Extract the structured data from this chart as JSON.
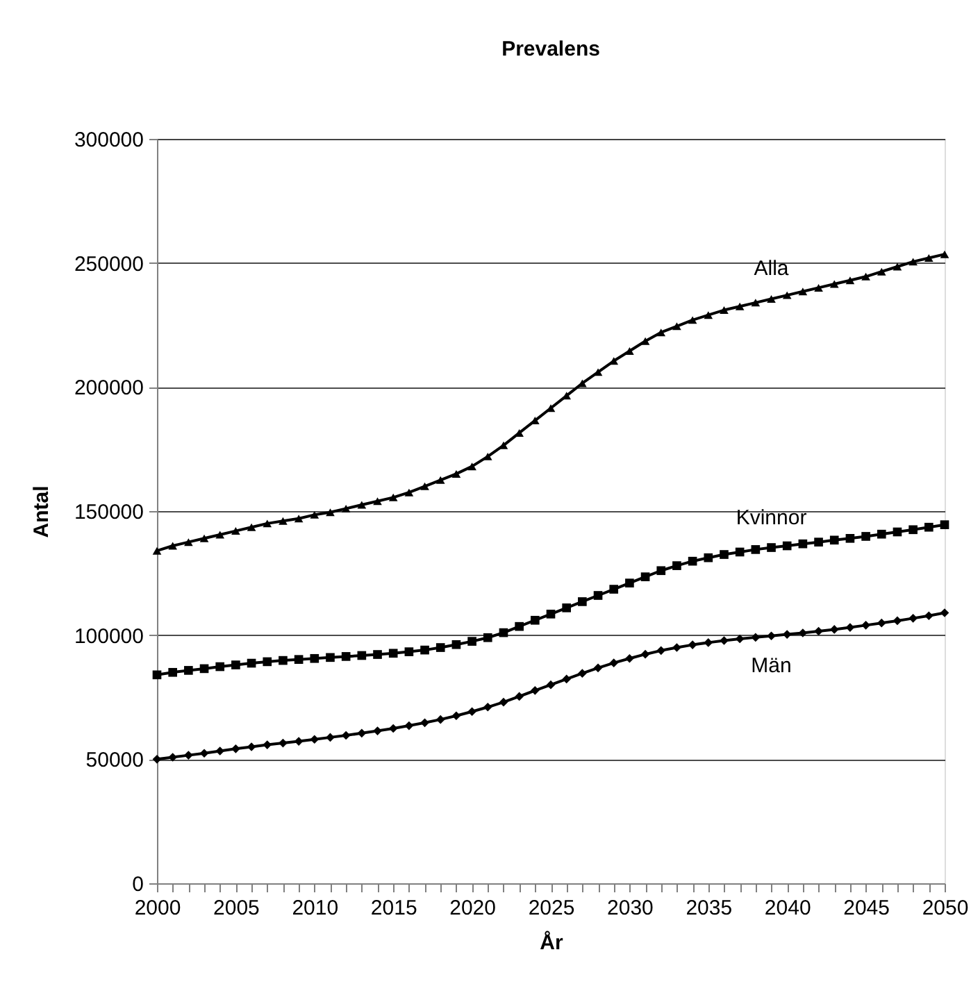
{
  "chart_data": {
    "type": "line",
    "title": "Prevalens",
    "xlabel": "År",
    "ylabel": "Antal",
    "x": [
      2000,
      2001,
      2002,
      2003,
      2004,
      2005,
      2006,
      2007,
      2008,
      2009,
      2010,
      2011,
      2012,
      2013,
      2014,
      2015,
      2016,
      2017,
      2018,
      2019,
      2020,
      2021,
      2022,
      2023,
      2024,
      2025,
      2026,
      2027,
      2028,
      2029,
      2030,
      2031,
      2032,
      2033,
      2034,
      2035,
      2036,
      2037,
      2038,
      2039,
      2040,
      2041,
      2042,
      2043,
      2044,
      2045,
      2046,
      2047,
      2048,
      2049,
      2050
    ],
    "series": [
      {
        "name": "Alla",
        "color": "#000000",
        "marker": "triangle",
        "values": [
          134000,
          136000,
          137500,
          139000,
          140500,
          142000,
          143500,
          145000,
          146000,
          147000,
          148500,
          149500,
          151000,
          152500,
          154000,
          155500,
          157500,
          160000,
          162500,
          165000,
          168000,
          172000,
          176500,
          181500,
          186500,
          191500,
          196500,
          201500,
          206000,
          210500,
          214500,
          218500,
          222000,
          224500,
          227000,
          229000,
          231000,
          232500,
          234000,
          235500,
          237000,
          238500,
          240000,
          241500,
          243000,
          244500,
          246500,
          248500,
          250500,
          252000,
          253500
        ]
      },
      {
        "name": "Kvinnor",
        "color": "#000000",
        "marker": "square",
        "values": [
          84000,
          85000,
          85800,
          86500,
          87300,
          88000,
          88700,
          89300,
          89800,
          90200,
          90600,
          91000,
          91400,
          91800,
          92200,
          92700,
          93300,
          94000,
          95000,
          96200,
          97500,
          99000,
          101000,
          103500,
          106000,
          108500,
          111000,
          113500,
          116000,
          118500,
          121000,
          123500,
          126000,
          128000,
          129800,
          131200,
          132500,
          133500,
          134500,
          135300,
          136000,
          136800,
          137500,
          138300,
          139000,
          139800,
          140700,
          141600,
          142500,
          143500,
          144500
        ]
      },
      {
        "name": "Män",
        "color": "#000000",
        "marker": "diamond",
        "values": [
          50000,
          50800,
          51600,
          52400,
          53300,
          54200,
          55000,
          55800,
          56500,
          57200,
          58000,
          58800,
          59600,
          60500,
          61400,
          62400,
          63500,
          64700,
          66000,
          67500,
          69200,
          71000,
          73000,
          75300,
          77700,
          80000,
          82300,
          84600,
          86800,
          88800,
          90600,
          92300,
          93800,
          95000,
          96100,
          97000,
          97800,
          98500,
          99100,
          99700,
          100300,
          100900,
          101600,
          102300,
          103100,
          104000,
          104900,
          105800,
          106800,
          107800,
          109000
        ]
      }
    ],
    "xlim": [
      2000,
      2050
    ],
    "xticks": [
      2000,
      {
        "value": 2001,
        "label": null
      },
      {
        "value": 2002,
        "label": null
      },
      {
        "value": 2003,
        "label": null
      },
      {
        "value": 2004,
        "label": null
      },
      2005,
      {
        "value": 2006,
        "label": null
      },
      {
        "value": 2007,
        "label": null
      },
      {
        "value": 2008,
        "label": null
      },
      {
        "value": 2009,
        "label": null
      },
      2010,
      {
        "value": 2011,
        "label": null
      },
      {
        "value": 2012,
        "label": null
      },
      {
        "value": 2013,
        "label": null
      },
      {
        "value": 2014,
        "label": null
      },
      2015,
      {
        "value": 2016,
        "label": null
      },
      {
        "value": 2017,
        "label": null
      },
      {
        "value": 2018,
        "label": null
      },
      {
        "value": 2019,
        "label": null
      },
      2020,
      {
        "value": 2021,
        "label": null
      },
      {
        "value": 2022,
        "label": null
      },
      {
        "value": 2023,
        "label": null
      },
      {
        "value": 2024,
        "label": null
      },
      2025,
      {
        "value": 2026,
        "label": null
      },
      {
        "value": 2027,
        "label": null
      },
      {
        "value": 2028,
        "label": null
      },
      {
        "value": 2029,
        "label": null
      },
      2030,
      {
        "value": 2031,
        "label": null
      },
      {
        "value": 2032,
        "label": null
      },
      {
        "value": 2033,
        "label": null
      },
      {
        "value": 2034,
        "label": null
      },
      2035,
      {
        "value": 2036,
        "label": null
      },
      {
        "value": 2037,
        "label": null
      },
      {
        "value": 2038,
        "label": null
      },
      {
        "value": 2039,
        "label": null
      },
      2040,
      {
        "value": 2041,
        "label": null
      },
      {
        "value": 2042,
        "label": null
      },
      {
        "value": 2043,
        "label": null
      },
      {
        "value": 2044,
        "label": null
      },
      2045,
      {
        "value": 2046,
        "label": null
      },
      {
        "value": 2047,
        "label": null
      },
      {
        "value": 2048,
        "label": null
      },
      {
        "value": 2049,
        "label": null
      },
      2050
    ],
    "ylim": [
      0,
      300000
    ],
    "yticks": [
      0,
      50000,
      100000,
      150000,
      200000,
      250000,
      300000
    ],
    "grid": "y",
    "legend": false,
    "line_style": "solid"
  }
}
